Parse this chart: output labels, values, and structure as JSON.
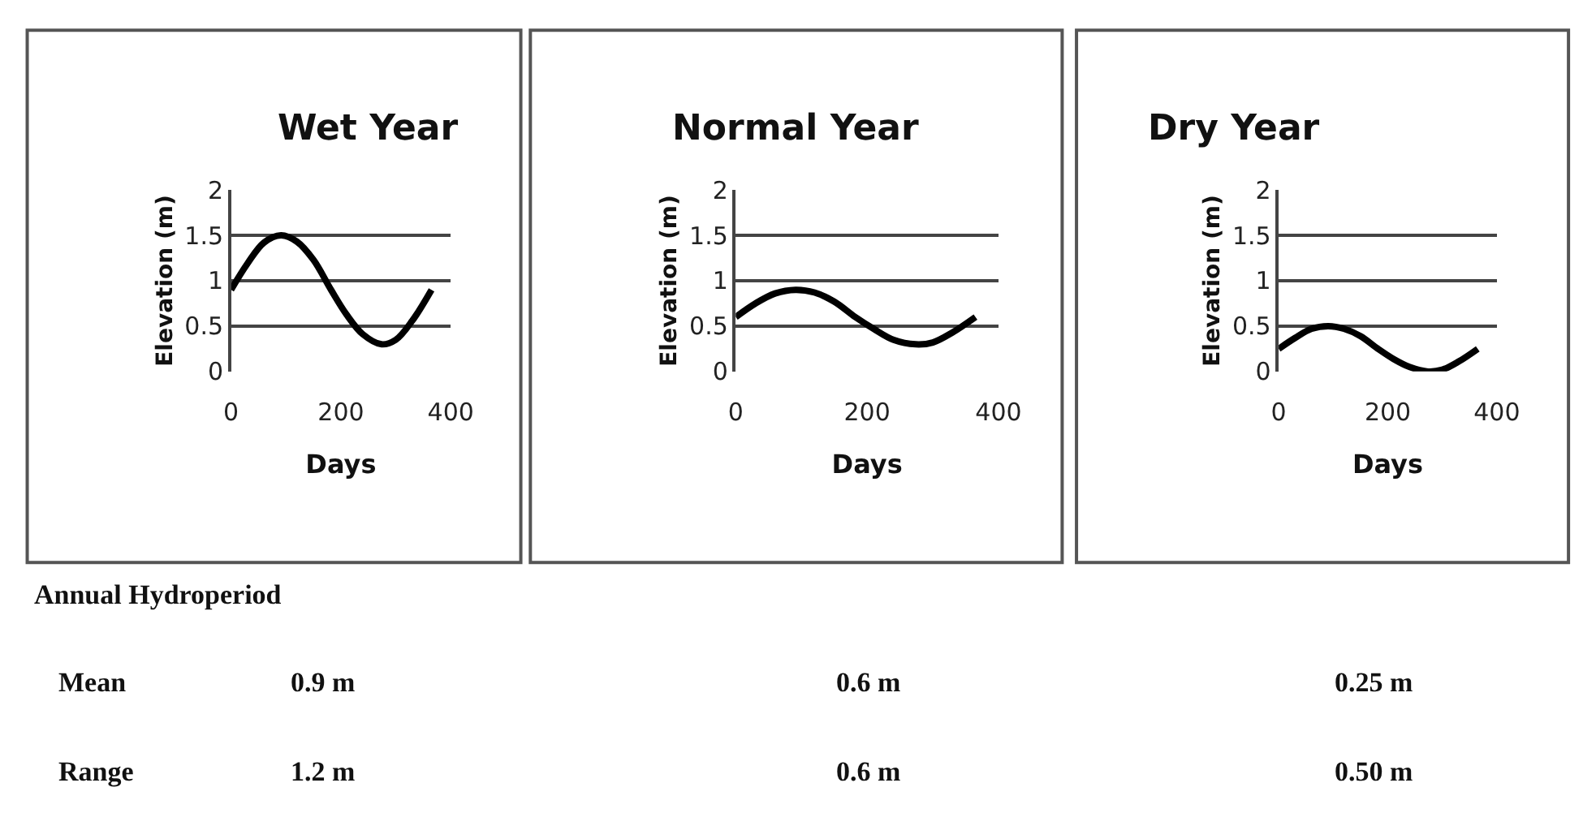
{
  "chart_data": [
    {
      "type": "line",
      "title": "Wet Year",
      "xlabel": "Days",
      "ylabel": "Elevation (m)",
      "xlim": [
        0,
        400
      ],
      "xticks": [
        0,
        200,
        400
      ],
      "ylim": [
        0,
        2
      ],
      "yticks": [
        0,
        0.5,
        1,
        1.5,
        2
      ],
      "grid": "y",
      "line_style": "solid",
      "marker": "none",
      "x": [
        0,
        30,
        60,
        91,
        120,
        150,
        182,
        210,
        240,
        274,
        300,
        330,
        365
      ],
      "series": [
        {
          "color": "#000000",
          "values": [
            0.9,
            1.19,
            1.42,
            1.5,
            1.43,
            1.23,
            0.9,
            0.63,
            0.41,
            0.3,
            0.35,
            0.56,
            0.9
          ]
        }
      ]
    },
    {
      "type": "line",
      "title": "Normal Year",
      "xlabel": "Days",
      "ylabel": "Elevation (m)",
      "xlim": [
        0,
        400
      ],
      "xticks": [
        0,
        200,
        400
      ],
      "ylim": [
        0,
        2
      ],
      "yticks": [
        0,
        0.5,
        1,
        1.5,
        2
      ],
      "grid": "y",
      "line_style": "solid",
      "marker": "none",
      "x": [
        0,
        30,
        60,
        91,
        120,
        150,
        182,
        210,
        240,
        274,
        300,
        330,
        365
      ],
      "series": [
        {
          "color": "#000000",
          "values": [
            0.6,
            0.75,
            0.86,
            0.9,
            0.87,
            0.77,
            0.6,
            0.47,
            0.35,
            0.3,
            0.32,
            0.43,
            0.6
          ]
        }
      ]
    },
    {
      "type": "line",
      "title": "Dry Year",
      "xlabel": "Days",
      "ylabel": "Elevation (m)",
      "xlim": [
        0,
        400
      ],
      "xticks": [
        0,
        200,
        400
      ],
      "ylim": [
        0,
        2
      ],
      "yticks": [
        0,
        0.5,
        1,
        1.5,
        2
      ],
      "grid": "y",
      "line_style": "solid",
      "marker": "none",
      "x": [
        0,
        30,
        60,
        91,
        120,
        150,
        182,
        210,
        240,
        274,
        300,
        330,
        365
      ],
      "series": [
        {
          "color": "#000000",
          "values": [
            0.25,
            0.37,
            0.47,
            0.5,
            0.47,
            0.39,
            0.25,
            0.14,
            0.05,
            0.0,
            0.02,
            0.11,
            0.25
          ]
        }
      ]
    },
    {
      "type": "other",
      "title": "Annual Hydroperiod",
      "annotations": [
        "Mean",
        "0.9 m",
        "0.6 m",
        "0.25 m",
        "Range",
        "1.2 m",
        "0.6 m",
        "0.50 m"
      ]
    }
  ]
}
